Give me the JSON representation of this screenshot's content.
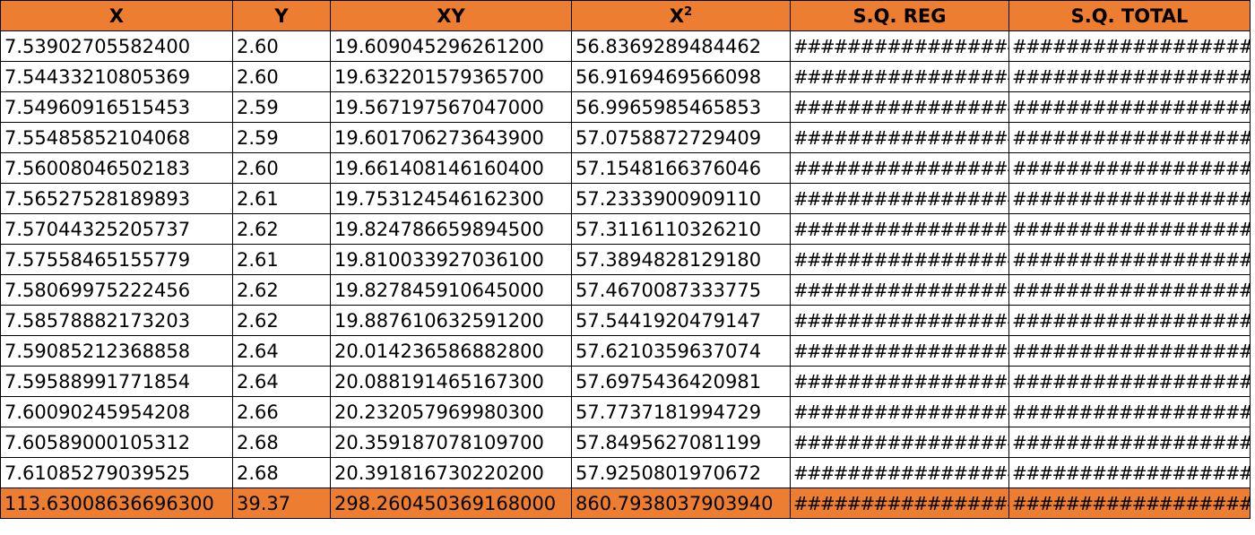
{
  "sheet": {
    "colors": {
      "header_fill": "#ed7d31",
      "total_fill": "#ed7d31",
      "grid": "#000000"
    },
    "headers": {
      "x": "X",
      "y": "Y",
      "xy": "XY",
      "x2_base": "X",
      "x2_sup": "2",
      "sq_reg": "S.Q. REG",
      "sq_total": "S.Q. TOTAL"
    },
    "rows": [
      {
        "x": "7.53902705582400",
        "y": "2.60",
        "xy": "19.609045296261200",
        "x2": "56.8369289484462",
        "sq_reg": "##################",
        "sq_total": "###################"
      },
      {
        "x": "7.54433210805369",
        "y": "2.60",
        "xy": "19.632201579365700",
        "x2": "56.9169469566098",
        "sq_reg": "##################",
        "sq_total": "###################"
      },
      {
        "x": "7.54960916515453",
        "y": "2.59",
        "xy": "19.567197567047000",
        "x2": "56.9965985465853",
        "sq_reg": "##################",
        "sq_total": "###################"
      },
      {
        "x": "7.55485852104068",
        "y": "2.59",
        "xy": "19.601706273643900",
        "x2": "57.0758872729409",
        "sq_reg": "##################",
        "sq_total": "###################"
      },
      {
        "x": "7.56008046502183",
        "y": "2.60",
        "xy": "19.661408146160400",
        "x2": "57.1548166376046",
        "sq_reg": "##################",
        "sq_total": "###################"
      },
      {
        "x": "7.56527528189893",
        "y": "2.61",
        "xy": "19.753124546162300",
        "x2": "57.2333900909110",
        "sq_reg": "##################",
        "sq_total": "###################"
      },
      {
        "x": "7.57044325205737",
        "y": "2.62",
        "xy": "19.824786659894500",
        "x2": "57.3116110326210",
        "sq_reg": "##################",
        "sq_total": "###################"
      },
      {
        "x": "7.57558465155779",
        "y": "2.61",
        "xy": "19.810033927036100",
        "x2": "57.3894828129180",
        "sq_reg": "##################",
        "sq_total": "###################"
      },
      {
        "x": "7.58069975222456",
        "y": "2.62",
        "xy": "19.827845910645000",
        "x2": "57.4670087333775",
        "sq_reg": "##################",
        "sq_total": "###################"
      },
      {
        "x": "7.58578882173203",
        "y": "2.62",
        "xy": "19.887610632591200",
        "x2": "57.5441920479147",
        "sq_reg": "##################",
        "sq_total": "###################"
      },
      {
        "x": "7.59085212368858",
        "y": "2.64",
        "xy": "20.014236586882800",
        "x2": "57.6210359637074",
        "sq_reg": "##################",
        "sq_total": "###################"
      },
      {
        "x": "7.59588991771854",
        "y": "2.64",
        "xy": "20.088191465167300",
        "x2": "57.6975436420981",
        "sq_reg": "##################",
        "sq_total": "###################"
      },
      {
        "x": "7.60090245954208",
        "y": "2.66",
        "xy": "20.232057969980300",
        "x2": "57.7737181994729",
        "sq_reg": "##################",
        "sq_total": "###################"
      },
      {
        "x": "7.60589000105312",
        "y": "2.68",
        "xy": "20.359187078109700",
        "x2": "57.8495627081199",
        "sq_reg": "##################",
        "sq_total": "###################"
      },
      {
        "x": "7.61085279039525",
        "y": "2.68",
        "xy": "20.391816730220200",
        "x2": "57.9250801970672",
        "sq_reg": "##################",
        "sq_total": "###################"
      }
    ],
    "totals": {
      "x": "113.63008636696300",
      "y": "39.37",
      "xy": "298.260450369168000",
      "x2": "860.7938037903940",
      "sq_reg": "##################",
      "sq_total": "###################"
    }
  }
}
